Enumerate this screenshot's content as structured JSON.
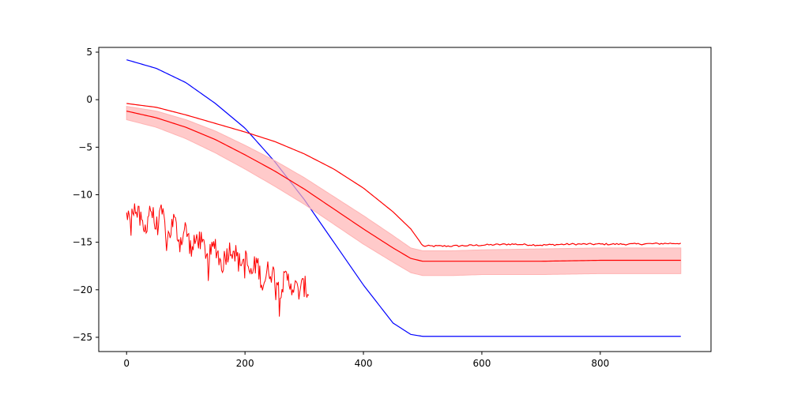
{
  "chart_data": {
    "type": "line",
    "title": "",
    "xlabel": "",
    "ylabel": "",
    "xlim": [
      -47,
      987
    ],
    "ylim": [
      -26.5,
      5.5
    ],
    "x_ticks": [
      0,
      200,
      400,
      600,
      800
    ],
    "y_ticks": [
      5,
      0,
      -5,
      -10,
      -15,
      -20,
      -25
    ],
    "x_tick_labels": [
      "0",
      "200",
      "400",
      "600",
      "800"
    ],
    "y_tick_labels": [
      "5",
      "0",
      "−5",
      "−10",
      "−15",
      "−20",
      "−25"
    ],
    "grid": false,
    "legend": "none",
    "series": [
      {
        "color": "#0000ff",
        "style": "line",
        "x": [
          0,
          50,
          100,
          150,
          200,
          250,
          300,
          350,
          400,
          450,
          480,
          500,
          550,
          600,
          650,
          700,
          750,
          800,
          850,
          938
        ],
        "y": [
          4.2,
          3.3,
          1.8,
          -0.4,
          -3.0,
          -6.5,
          -10.5,
          -15.0,
          -19.5,
          -23.5,
          -24.7,
          -24.9,
          -24.9,
          -24.9,
          -24.9,
          -24.9,
          -24.9,
          -24.9,
          -24.9,
          -24.9
        ]
      },
      {
        "color": "#ff0000",
        "style": "line",
        "x": [
          0,
          50,
          100,
          150,
          200,
          250,
          300,
          350,
          400,
          450,
          480,
          495,
          500,
          550,
          600,
          650,
          700,
          750,
          800,
          850,
          938
        ],
        "y": [
          -0.4,
          -0.8,
          -1.6,
          -2.5,
          -3.4,
          -4.4,
          -5.7,
          -7.3,
          -9.3,
          -11.8,
          -13.6,
          -14.9,
          -15.4,
          -15.4,
          -15.3,
          -15.2,
          -15.3,
          -15.2,
          -15.2,
          -15.2,
          -15.1
        ]
      },
      {
        "color": "#ff0000",
        "style": "line-with-band",
        "band_color": "#ffb3b3",
        "x": [
          0,
          50,
          100,
          150,
          200,
          250,
          300,
          350,
          400,
          450,
          480,
          500,
          550,
          600,
          700,
          800,
          938
        ],
        "y": [
          -1.2,
          -1.9,
          -2.9,
          -4.2,
          -5.8,
          -7.5,
          -9.4,
          -11.5,
          -13.6,
          -15.6,
          -16.7,
          -17.0,
          -17.0,
          -17.0,
          -17.0,
          -16.9,
          -16.9
        ],
        "lower": [
          -2.1,
          -2.9,
          -4.1,
          -5.6,
          -7.3,
          -9.1,
          -11.0,
          -13.1,
          -15.2,
          -17.1,
          -18.2,
          -18.5,
          -18.5,
          -18.4,
          -18.4,
          -18.3,
          -18.3
        ],
        "upper": [
          -0.7,
          -1.2,
          -2.1,
          -3.3,
          -4.8,
          -6.4,
          -8.2,
          -10.2,
          -12.2,
          -14.3,
          -15.6,
          -15.9,
          -15.9,
          -15.8,
          -15.7,
          -15.6,
          -15.6
        ]
      },
      {
        "color": "#ff0000",
        "style": "noisy-line",
        "x": [
          0,
          10,
          20,
          30,
          40,
          50,
          60,
          70,
          80,
          90,
          100,
          110,
          120,
          130,
          140,
          150,
          160,
          170,
          180,
          190,
          200,
          210,
          220,
          230,
          240,
          250,
          260,
          270,
          280,
          290,
          300,
          308
        ],
        "y": [
          -13.0,
          -11.0,
          -12.2,
          -14.0,
          -11.2,
          -13.5,
          -12.0,
          -14.5,
          -12.6,
          -15.0,
          -13.5,
          -16.0,
          -14.4,
          -15.5,
          -16.5,
          -15.2,
          -17.5,
          -16.0,
          -15.5,
          -17.2,
          -16.6,
          -18.5,
          -17.0,
          -19.5,
          -17.8,
          -18.5,
          -19.8,
          -18.8,
          -19.5,
          -20.2,
          -19.6,
          -20.3
        ],
        "noise_amplitude": 1.2,
        "noise_spikes": 4.0
      }
    ]
  }
}
